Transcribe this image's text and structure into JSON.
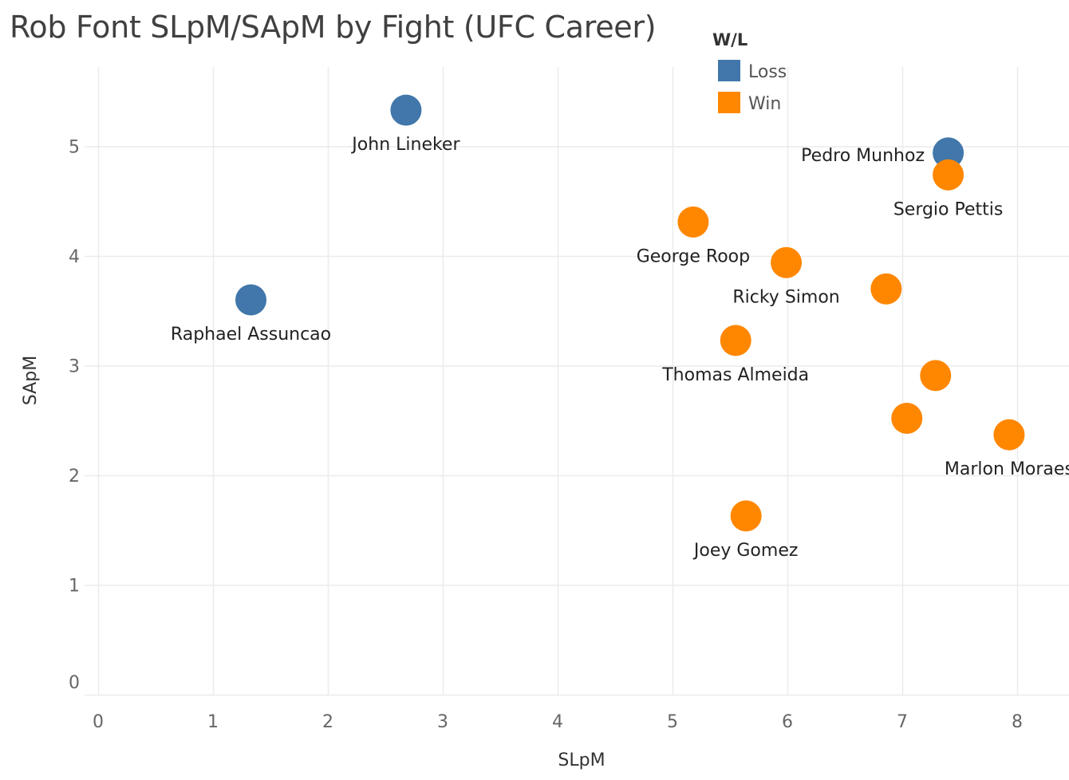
{
  "chart_data": {
    "type": "scatter",
    "title": "Rob Font SLpM/SApM by Fight (UFC Career)",
    "xlabel": "SLpM",
    "ylabel": "SApM",
    "xlim": [
      0,
      8.4
    ],
    "ylim": [
      0,
      5.7
    ],
    "xticks": [
      0,
      1,
      2,
      3,
      4,
      5,
      6,
      7,
      8
    ],
    "yticks": [
      0,
      1,
      2,
      3,
      4,
      5
    ],
    "grid": true,
    "legend": {
      "title": "W/L",
      "position": "top-center",
      "entries": [
        {
          "name": "Loss",
          "color": "#4177aa"
        },
        {
          "name": "Win",
          "color": "#ff8700"
        }
      ]
    },
    "points": [
      {
        "x": 2.68,
        "y": 5.33,
        "result": "Loss",
        "label": "John Lineker"
      },
      {
        "x": 1.33,
        "y": 3.6,
        "result": "Loss",
        "label": "Raphael Assuncao"
      },
      {
        "x": 7.4,
        "y": 4.94,
        "result": "Loss",
        "label": "Pedro Munhoz"
      },
      {
        "x": 7.4,
        "y": 4.74,
        "result": "Win",
        "label": "Sergio Pettis"
      },
      {
        "x": 5.18,
        "y": 4.31,
        "result": "Win",
        "label": "George Roop"
      },
      {
        "x": 5.99,
        "y": 3.94,
        "result": "Win",
        "label": "Ricky Simon"
      },
      {
        "x": 6.86,
        "y": 3.7,
        "result": "Win",
        "label": ""
      },
      {
        "x": 5.55,
        "y": 3.23,
        "result": "Win",
        "label": "Thomas Almeida"
      },
      {
        "x": 7.29,
        "y": 2.91,
        "result": "Win",
        "label": ""
      },
      {
        "x": 7.04,
        "y": 2.52,
        "result": "Win",
        "label": ""
      },
      {
        "x": 7.93,
        "y": 2.37,
        "result": "Win",
        "label": "Marlon Moraes"
      },
      {
        "x": 5.64,
        "y": 1.63,
        "result": "Win",
        "label": "Joey Gomez"
      }
    ]
  }
}
